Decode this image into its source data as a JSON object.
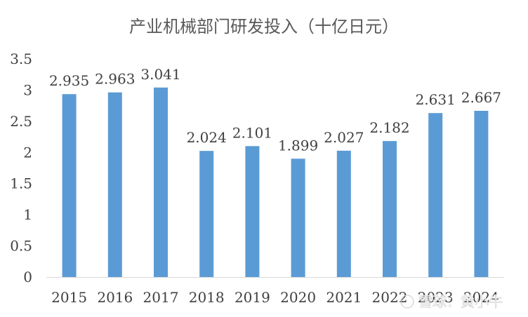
{
  "chart_data": {
    "type": "bar",
    "title": "产业机械部门研发投入（十亿日元）",
    "categories": [
      "2015",
      "2016",
      "2017",
      "2018",
      "2019",
      "2020",
      "2021",
      "2022",
      "2023",
      "2024"
    ],
    "values": [
      2.935,
      2.963,
      3.041,
      2.024,
      2.101,
      1.899,
      2.027,
      2.182,
      2.631,
      2.667
    ],
    "value_labels": [
      "2.935",
      "2.963",
      "3.041",
      "2.024",
      "2.101",
      "1.899",
      "2.027",
      "2.182",
      "2.631",
      "2.667"
    ],
    "ylim": [
      0,
      3.5
    ],
    "yticks": [
      "0",
      "0.5",
      "1",
      "1.5",
      "2",
      "2.5",
      "3",
      "3.5"
    ],
    "xlabel": "",
    "ylabel": "",
    "grid": false,
    "bar_color": "#5b9bd5",
    "axis_color": "#d9d9d9"
  },
  "watermark": {
    "text": "雪球：黄小牛"
  }
}
